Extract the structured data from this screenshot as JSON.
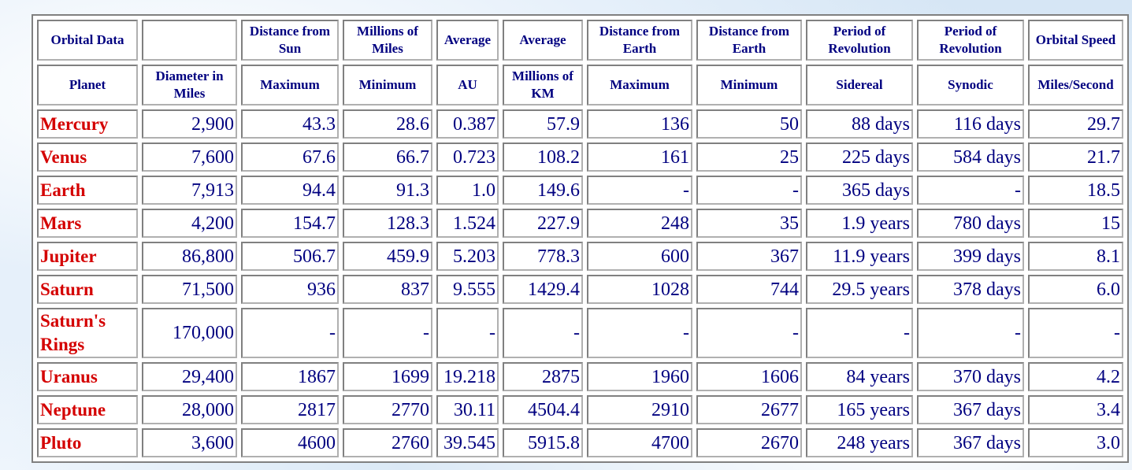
{
  "table": {
    "header_rows": [
      [
        "Orbital Data",
        null,
        "Distance from Sun",
        "Millions of Miles",
        "Average",
        "Average",
        "Distance from Earth",
        "Distance from Earth",
        "Period of Revolution",
        "Period of Revolution",
        "Orbital Speed"
      ],
      [
        "Planet",
        "Diameter in Miles",
        "Maximum",
        "Minimum",
        "AU",
        "Millions of KM",
        "Maximum",
        "Minimum",
        "Sidereal",
        "Synodic",
        "Miles/Second"
      ]
    ],
    "rows": [
      [
        "Mercury",
        "2,900",
        "43.3",
        "28.6",
        "0.387",
        "57.9",
        "136",
        "50",
        "88 days",
        "116 days",
        "29.7"
      ],
      [
        "Venus",
        "7,600",
        "67.6",
        "66.7",
        "0.723",
        "108.2",
        "161",
        "25",
        "225 days",
        "584 days",
        "21.7"
      ],
      [
        "Earth",
        "7,913",
        "94.4",
        "91.3",
        "1.0",
        "149.6",
        "-",
        "-",
        "365 days",
        "-",
        "18.5"
      ],
      [
        "Mars",
        "4,200",
        "154.7",
        "128.3",
        "1.524",
        "227.9",
        "248",
        "35",
        "1.9 years",
        "780 days",
        "15"
      ],
      [
        "Jupiter",
        "86,800",
        "506.7",
        "459.9",
        "5.203",
        "778.3",
        "600",
        "367",
        "11.9 years",
        "399 days",
        "8.1"
      ],
      [
        "Saturn",
        "71,500",
        "936",
        "837",
        "9.555",
        "1429.4",
        "1028",
        "744",
        "29.5 years",
        "378 days",
        "6.0"
      ],
      [
        "Saturn's Rings",
        "170,000",
        "-",
        "-",
        "-",
        "-",
        "-",
        "-",
        "-",
        "-",
        "-"
      ],
      [
        "Uranus",
        "29,400",
        "1867",
        "1699",
        "19.218",
        "2875",
        "1960",
        "1606",
        "84 years",
        "370 days",
        "4.2"
      ],
      [
        "Neptune",
        "28,000",
        "2817",
        "2770",
        "30.11",
        "4504.4",
        "2910",
        "2677",
        "165 years",
        "367 days",
        "3.4"
      ],
      [
        "Pluto",
        "3,600",
        "4600",
        "2760",
        "39.545",
        "5915.8",
        "4700",
        "2670",
        "248 years",
        "367 days",
        "3.0"
      ]
    ]
  }
}
